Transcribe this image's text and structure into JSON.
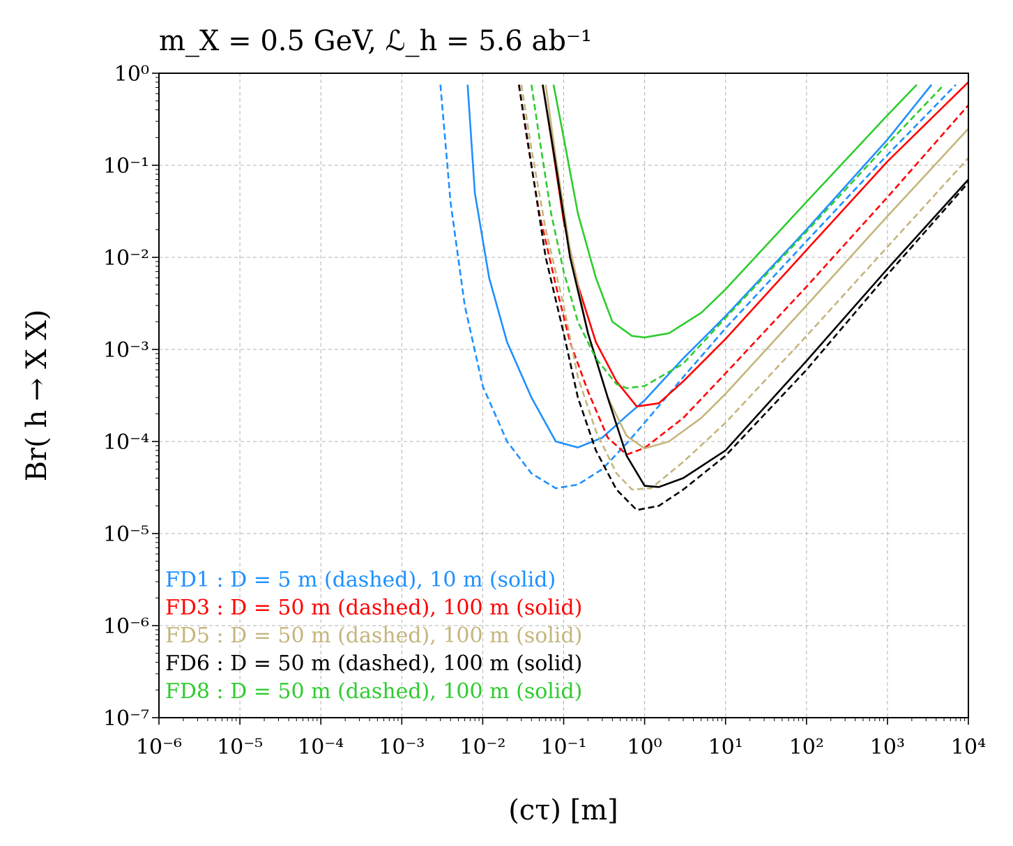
{
  "chart_data": {
    "type": "line",
    "title": "m_X = 0.5 GeV, ℒ_h = 5.6 ab⁻¹",
    "xlabel": "(cτ) [m]",
    "ylabel": "Br( h → X X)",
    "xscale": "log",
    "yscale": "log",
    "xlim": [
      1e-06,
      10000.0
    ],
    "ylim": [
      1e-07,
      1
    ],
    "grid": true,
    "x_tick_labels": [
      "10⁻⁶",
      "10⁻⁵",
      "10⁻⁴",
      "10⁻³",
      "10⁻²",
      "10⁻¹",
      "10⁰",
      "10¹",
      "10²",
      "10³",
      "10⁴"
    ],
    "y_tick_labels": [
      "10⁻⁷",
      "10⁻⁶",
      "10⁻⁵",
      "10⁻⁴",
      "10⁻³",
      "10⁻²",
      "10⁻¹",
      "10⁰"
    ],
    "legend_placement": "lower-left",
    "legend": [
      {
        "text": "FD1 : D =   5 m (dashed),  10 m (solid)",
        "color": "#1e90ff"
      },
      {
        "text": "FD3 : D = 50 m (dashed), 100 m (solid)",
        "color": "#ff0000"
      },
      {
        "text": "FD5 : D = 50 m (dashed), 100 m (solid)",
        "color": "#c4b57b"
      },
      {
        "text": "FD6 : D = 50 m (dashed), 100 m (solid)",
        "color": "#000000"
      },
      {
        "text": "FD8 : D = 50 m (dashed), 100 m (solid)",
        "color": "#2ecc2e"
      }
    ],
    "series": [
      {
        "name": "FD1 dashed (D = 5 m)",
        "color": "#1e90ff",
        "dashed": true,
        "points": [
          [
            0.003,
            0.75
          ],
          [
            0.004,
            0.04
          ],
          [
            0.006,
            0.003
          ],
          [
            0.01,
            0.0004
          ],
          [
            0.02,
            0.0001
          ],
          [
            0.04,
            4.5e-05
          ],
          [
            0.08,
            3.1e-05
          ],
          [
            0.15,
            3.4e-05
          ],
          [
            0.3,
            5e-05
          ],
          [
            0.6,
            9.5e-05
          ],
          [
            1,
            0.00016
          ],
          [
            3,
            0.0005
          ],
          [
            10,
            0.0017
          ],
          [
            100,
            0.015
          ],
          [
            1000,
            0.13
          ],
          [
            7000,
            0.75
          ]
        ]
      },
      {
        "name": "FD1 solid (D = 10 m)",
        "color": "#1e90ff",
        "dashed": false,
        "points": [
          [
            0.0065,
            0.75
          ],
          [
            0.008,
            0.05
          ],
          [
            0.012,
            0.006
          ],
          [
            0.02,
            0.0012
          ],
          [
            0.04,
            0.0003
          ],
          [
            0.08,
            0.0001
          ],
          [
            0.15,
            8.6e-05
          ],
          [
            0.3,
            0.00011
          ],
          [
            0.6,
            0.00019
          ],
          [
            1,
            0.00028
          ],
          [
            3,
            0.0008
          ],
          [
            10,
            0.0023
          ],
          [
            100,
            0.02
          ],
          [
            1000,
            0.19
          ],
          [
            3500,
            0.75
          ]
        ]
      },
      {
        "name": "FD3 dashed (D = 50 m)",
        "color": "#ff0000",
        "dashed": true,
        "points": [
          [
            0.028,
            0.75
          ],
          [
            0.035,
            0.2
          ],
          [
            0.05,
            0.03
          ],
          [
            0.08,
            0.005
          ],
          [
            0.12,
            0.0012
          ],
          [
            0.2,
            0.00035
          ],
          [
            0.35,
            0.00011
          ],
          [
            0.6,
            7.2e-05
          ],
          [
            1,
            8.5e-05
          ],
          [
            3,
            0.00018
          ],
          [
            10,
            0.00055
          ],
          [
            100,
            0.0048
          ],
          [
            1000,
            0.045
          ],
          [
            10000,
            0.45
          ]
        ]
      },
      {
        "name": "FD3 solid (D = 100 m)",
        "color": "#ff0000",
        "dashed": false,
        "points": [
          [
            0.055,
            0.75
          ],
          [
            0.07,
            0.2
          ],
          [
            0.1,
            0.025
          ],
          [
            0.15,
            0.005
          ],
          [
            0.25,
            0.0012
          ],
          [
            0.45,
            0.00045
          ],
          [
            0.8,
            0.00024
          ],
          [
            1.5,
            0.00026
          ],
          [
            3,
            0.00045
          ],
          [
            10,
            0.0013
          ],
          [
            100,
            0.012
          ],
          [
            1000,
            0.11
          ],
          [
            10000,
            0.8
          ]
        ]
      },
      {
        "name": "FD5 dashed (D = 50 m)",
        "color": "#c4b57b",
        "dashed": true,
        "points": [
          [
            0.03,
            0.75
          ],
          [
            0.04,
            0.15
          ],
          [
            0.06,
            0.02
          ],
          [
            0.1,
            0.003
          ],
          [
            0.15,
            0.0005
          ],
          [
            0.25,
            0.00013
          ],
          [
            0.45,
            4.5e-05
          ],
          [
            0.7,
            3e-05
          ],
          [
            1.2,
            3.1e-05
          ],
          [
            3,
            6e-05
          ],
          [
            10,
            0.00016
          ],
          [
            100,
            0.0014
          ],
          [
            1000,
            0.013
          ],
          [
            10000,
            0.12
          ]
        ]
      },
      {
        "name": "FD5 solid (D = 100 m)",
        "color": "#c4b57b",
        "dashed": false,
        "points": [
          [
            0.06,
            0.75
          ],
          [
            0.08,
            0.12
          ],
          [
            0.12,
            0.012
          ],
          [
            0.2,
            0.0015
          ],
          [
            0.35,
            0.0003
          ],
          [
            0.6,
            0.000115
          ],
          [
            1,
            8.4e-05
          ],
          [
            2,
            0.0001
          ],
          [
            5,
            0.00018
          ],
          [
            10,
            0.00033
          ],
          [
            100,
            0.003
          ],
          [
            1000,
            0.028
          ],
          [
            10000,
            0.25
          ]
        ]
      },
      {
        "name": "FD6 dashed (D = 50 m)",
        "color": "#000000",
        "dashed": true,
        "points": [
          [
            0.028,
            0.75
          ],
          [
            0.04,
            0.1
          ],
          [
            0.06,
            0.01
          ],
          [
            0.1,
            0.0015
          ],
          [
            0.15,
            0.0003
          ],
          [
            0.25,
            8e-05
          ],
          [
            0.45,
            3e-05
          ],
          [
            0.8,
            1.8e-05
          ],
          [
            1.5,
            2e-05
          ],
          [
            3,
            3e-05
          ],
          [
            10,
            7e-05
          ],
          [
            100,
            0.0006
          ],
          [
            1000,
            0.0065
          ],
          [
            10000,
            0.065
          ]
        ]
      },
      {
        "name": "FD6 solid (D = 100 m)",
        "color": "#000000",
        "dashed": false,
        "points": [
          [
            0.055,
            0.75
          ],
          [
            0.08,
            0.1
          ],
          [
            0.12,
            0.01
          ],
          [
            0.2,
            0.0015
          ],
          [
            0.35,
            0.0003
          ],
          [
            0.6,
            7e-05
          ],
          [
            1,
            3.3e-05
          ],
          [
            1.5,
            3.2e-05
          ],
          [
            3,
            4e-05
          ],
          [
            10,
            8e-05
          ],
          [
            100,
            0.00075
          ],
          [
            1000,
            0.0075
          ],
          [
            10000,
            0.07
          ]
        ]
      },
      {
        "name": "FD8 dashed (D = 50 m)",
        "color": "#2ecc2e",
        "dashed": true,
        "points": [
          [
            0.04,
            0.75
          ],
          [
            0.05,
            0.2
          ],
          [
            0.07,
            0.03
          ],
          [
            0.1,
            0.007
          ],
          [
            0.15,
            0.002
          ],
          [
            0.25,
            0.0008
          ],
          [
            0.45,
            0.00042
          ],
          [
            0.6,
            0.00038
          ],
          [
            1,
            0.0004
          ],
          [
            3,
            0.0007
          ],
          [
            10,
            0.0022
          ],
          [
            100,
            0.019
          ],
          [
            1000,
            0.17
          ],
          [
            5000,
            0.75
          ]
        ]
      },
      {
        "name": "FD8 solid (D = 100 m)",
        "color": "#2ecc2e",
        "dashed": false,
        "points": [
          [
            0.075,
            0.75
          ],
          [
            0.1,
            0.2
          ],
          [
            0.15,
            0.03
          ],
          [
            0.25,
            0.006
          ],
          [
            0.4,
            0.002
          ],
          [
            0.7,
            0.0014
          ],
          [
            1,
            0.00135
          ],
          [
            2,
            0.0015
          ],
          [
            5,
            0.0025
          ],
          [
            10,
            0.0045
          ],
          [
            100,
            0.04
          ],
          [
            1000,
            0.35
          ],
          [
            2300,
            0.75
          ]
        ]
      }
    ]
  }
}
